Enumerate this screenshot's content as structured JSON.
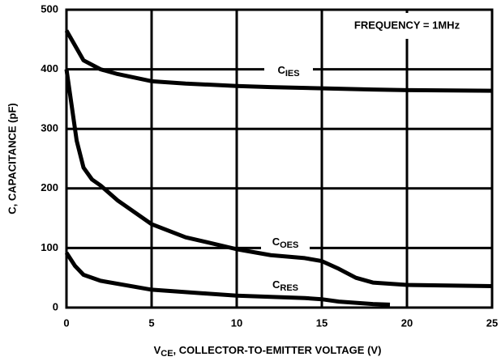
{
  "chart_data": {
    "type": "line",
    "xlabel": "VCE, COLLECTOR-TO-EMITTER VOLTAGE (V)",
    "ylabel": "C, CAPACITANCE (pF)",
    "annotation": "FREQUENCY = 1MHz",
    "xlim": [
      0,
      25
    ],
    "xticks": [
      0,
      5,
      10,
      15,
      20,
      25
    ],
    "ylim": [
      0,
      500
    ],
    "yticks": [
      0,
      100,
      200,
      300,
      400,
      500
    ],
    "grid": true,
    "color": "#000000",
    "series": [
      {
        "name": "CIES",
        "color": "#000000",
        "x": [
          0,
          0.5,
          1,
          2,
          3,
          5,
          7,
          10,
          12,
          15,
          18,
          20,
          25
        ],
        "values": [
          465,
          440,
          415,
          400,
          392,
          380,
          376,
          372,
          370,
          368,
          366,
          365,
          364
        ]
      },
      {
        "name": "COES",
        "color": "#000000",
        "x": [
          0,
          0.3,
          0.6,
          1,
          1.5,
          2,
          3,
          5,
          7,
          10,
          12,
          14,
          15,
          16,
          17,
          18,
          20,
          25
        ],
        "values": [
          400,
          340,
          280,
          235,
          215,
          205,
          180,
          140,
          118,
          98,
          88,
          83,
          78,
          65,
          50,
          42,
          38,
          36
        ]
      },
      {
        "name": "CRES",
        "color": "#000000",
        "x": [
          0,
          0.5,
          1,
          2,
          5,
          8,
          10,
          14,
          15,
          16,
          18,
          19
        ],
        "values": [
          92,
          70,
          55,
          45,
          30,
          24,
          20,
          16,
          14,
          10,
          6,
          5
        ]
      }
    ]
  }
}
